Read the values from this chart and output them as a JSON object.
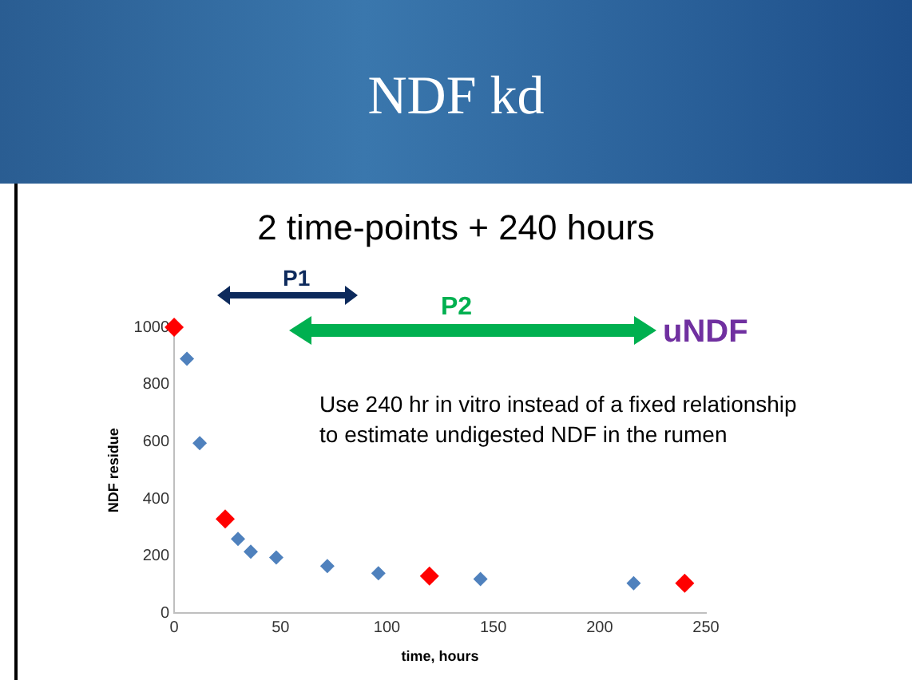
{
  "chart_data": {
    "type": "scatter",
    "title": "NDF kd",
    "subtitle": "2 time-points + 240 hours",
    "xlabel": "time, hours",
    "ylabel": "NDF residue",
    "annotations": [
      "P1",
      "P2",
      "uNDF",
      "Use 240 hr in vitro instead of a fixed relationship  to estimate undigested NDF in the rumen"
    ],
    "series": [
      {
        "color": "#4f81bd",
        "x": [
          6,
          12,
          30,
          36,
          48,
          72,
          96,
          144,
          216
        ],
        "values": [
          890,
          595,
          260,
          215,
          195,
          165,
          140,
          120,
          105
        ]
      },
      {
        "color": "#ff0000",
        "x": [
          0,
          24,
          120,
          240
        ],
        "values": [
          1000,
          330,
          130,
          105
        ]
      }
    ],
    "xlim": [
      0,
      250
    ],
    "xticks": [
      0,
      50,
      100,
      150,
      200,
      250
    ],
    "ylim": [
      0,
      1000
    ],
    "yticks": [
      0,
      200,
      400,
      600,
      800,
      1000
    ],
    "marker": "diamond",
    "grid": false
  }
}
